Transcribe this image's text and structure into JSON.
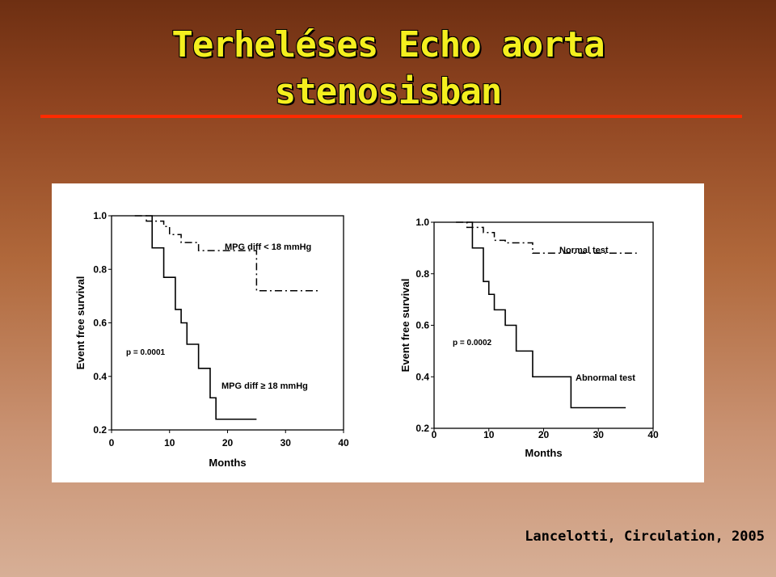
{
  "slide": {
    "title_line1": "Terheléses Echo aorta",
    "title_line2": "stenosisban",
    "citation": "Lancelotti, Circulation, 2005"
  },
  "colors": {
    "title": "#f4ef1e",
    "rule": "#ff2a00"
  },
  "chart_data": [
    {
      "type": "line",
      "step": true,
      "xlabel": "Months",
      "ylabel": "Event free survival",
      "xlim": [
        0,
        40
      ],
      "ylim": [
        0.2,
        1.0
      ],
      "x_ticks": [
        "0",
        "10",
        "20",
        "30",
        "40"
      ],
      "y_ticks": [
        "1.0",
        "0.8",
        "0.6",
        "0.4",
        "0.2"
      ],
      "annotation": "p = 0.0001",
      "series": [
        {
          "name": "MPG diff < 18 mmHg",
          "style": "dash-dot",
          "x": [
            4,
            6,
            9,
            10,
            12,
            15,
            25,
            25,
            36
          ],
          "y": [
            1.0,
            0.98,
            0.96,
            0.93,
            0.9,
            0.87,
            0.87,
            0.72,
            0.72
          ]
        },
        {
          "name": "MPG diff ≥ 18 mmHg",
          "style": "solid",
          "x": [
            6,
            7,
            9,
            11,
            12,
            13,
            15,
            17,
            18,
            25
          ],
          "y": [
            1.0,
            0.88,
            0.77,
            0.65,
            0.6,
            0.52,
            0.43,
            0.32,
            0.24,
            0.24
          ]
        }
      ]
    },
    {
      "type": "line",
      "step": true,
      "xlabel": "Months",
      "ylabel": "Event free survival",
      "xlim": [
        0,
        40
      ],
      "ylim": [
        0.2,
        1.0
      ],
      "x_ticks": [
        "0",
        "10",
        "20",
        "30",
        "40"
      ],
      "y_ticks": [
        "1.0",
        "0.8",
        "0.6",
        "0.4",
        "0.2"
      ],
      "annotation": "p = 0.0002",
      "series": [
        {
          "name": "Normal test",
          "style": "dash-dot",
          "x": [
            4,
            6,
            9,
            11,
            13,
            18,
            37
          ],
          "y": [
            1.0,
            0.98,
            0.96,
            0.93,
            0.92,
            0.88,
            0.88
          ]
        },
        {
          "name": "Abnormal test",
          "style": "solid",
          "x": [
            6,
            7,
            9,
            10,
            11,
            13,
            15,
            18,
            25,
            35
          ],
          "y": [
            1.0,
            0.9,
            0.77,
            0.72,
            0.66,
            0.6,
            0.5,
            0.4,
            0.28,
            0.28
          ]
        }
      ]
    }
  ]
}
